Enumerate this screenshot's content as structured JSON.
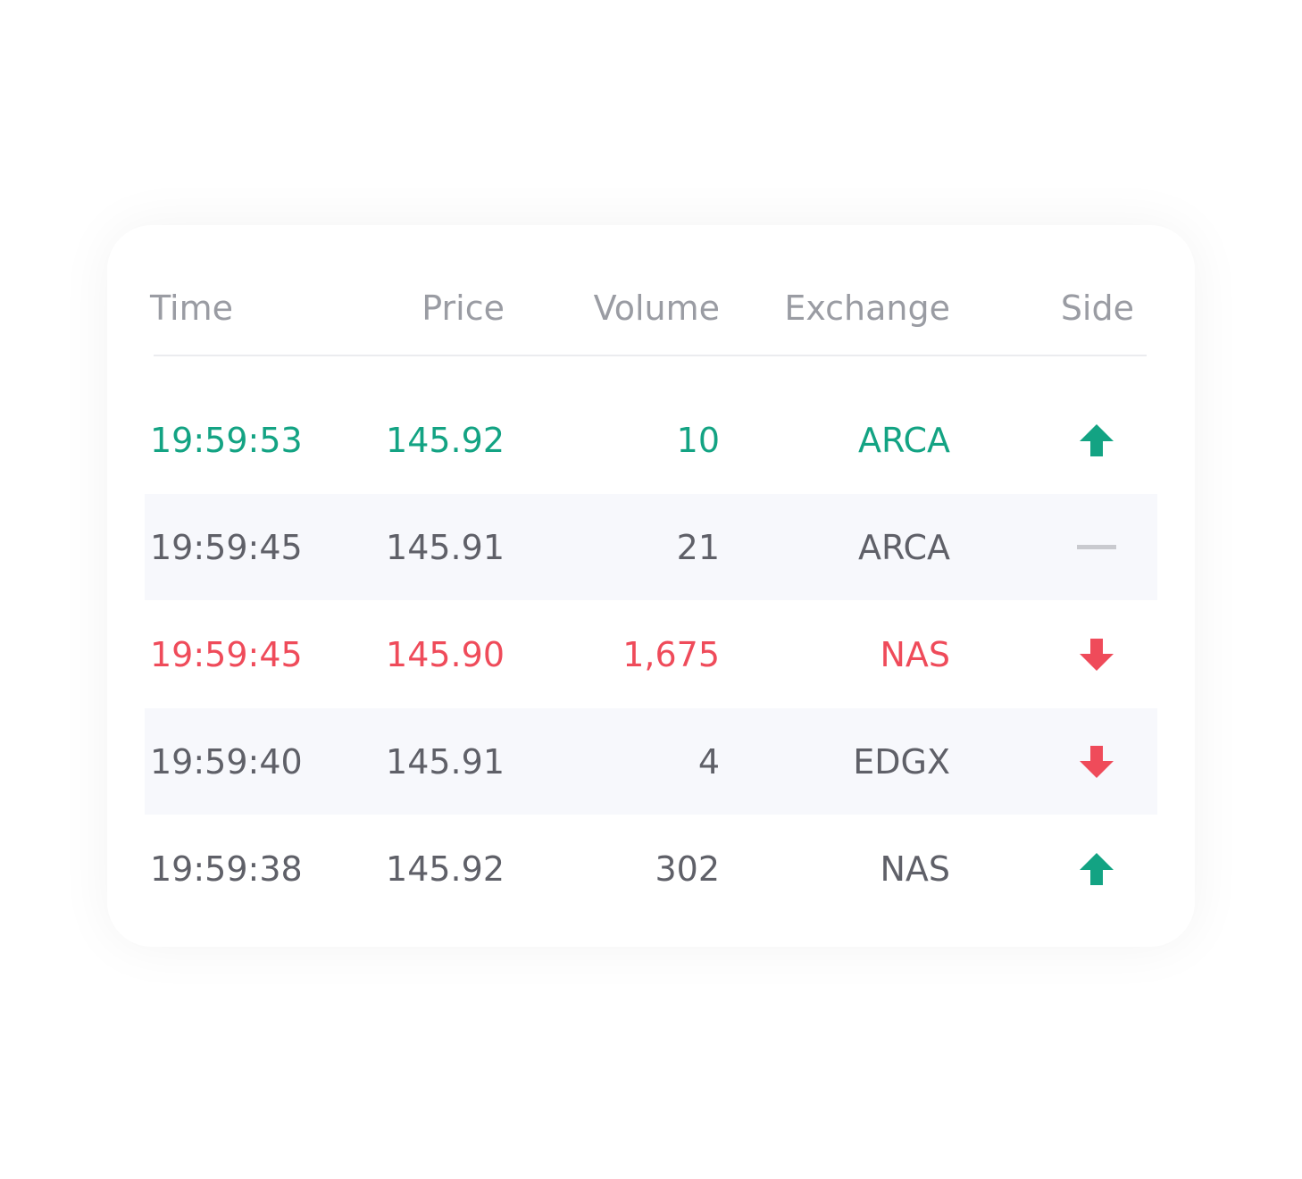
{
  "table": {
    "columns": [
      "Time",
      "Price",
      "Volume",
      "Exchange",
      "Side"
    ],
    "rows": [
      {
        "cells": [
          "19:59:53",
          "145.92",
          "10",
          "ARCA"
        ],
        "side": "up",
        "color": "#13a383"
      },
      {
        "cells": [
          "19:59:45",
          "145.91",
          "21",
          "ARCA"
        ],
        "side": "flat",
        "color": "#5f6068"
      },
      {
        "cells": [
          "19:59:45",
          "145.90",
          "1,675",
          "NAS"
        ],
        "side": "down",
        "color": "#ef4b5a"
      },
      {
        "cells": [
          "19:59:40",
          "145.91",
          "4",
          "EDGX"
        ],
        "side": "down",
        "color": "#5f6068"
      },
      {
        "cells": [
          "19:59:38",
          "145.92",
          "302",
          "NAS"
        ],
        "side": "up",
        "color": "#5f6068"
      }
    ]
  }
}
